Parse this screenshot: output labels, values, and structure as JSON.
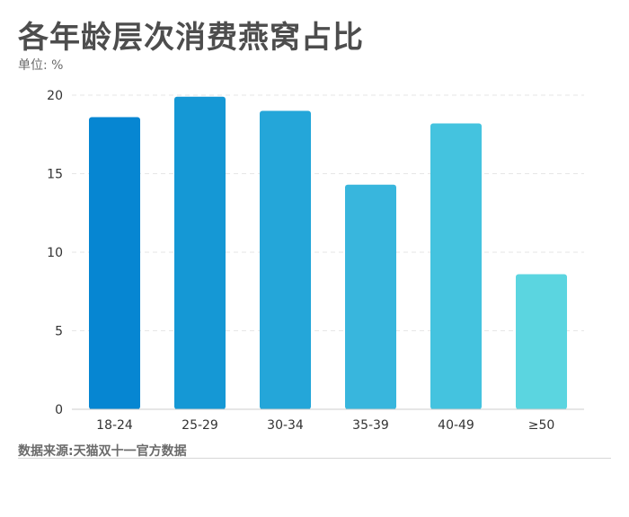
{
  "header": {
    "title": "各年龄层次消费燕窝占比",
    "unit": "单位: %"
  },
  "footer": {
    "source": "数据来源:天猫双十一官方数据"
  },
  "chart_data": {
    "type": "bar",
    "title": "各年龄层次消费燕窝占比",
    "subtitle": "单位: %",
    "categories": [
      "18-24",
      "25-29",
      "30-34",
      "35-39",
      "40-49",
      "≥50"
    ],
    "values": [
      18.6,
      19.9,
      19.0,
      14.3,
      18.2,
      8.6
    ],
    "ylim": [
      0,
      20
    ],
    "yticks": [
      0,
      5,
      10,
      15,
      20
    ],
    "grid": true,
    "legend": "none",
    "colors": [
      "#0686d2",
      "#1598d5",
      "#24a6d9",
      "#38b6dd",
      "#44c3df",
      "#5bd5e0"
    ],
    "grid_color": "#e6e6e6",
    "axis_color": "#cccccc"
  }
}
